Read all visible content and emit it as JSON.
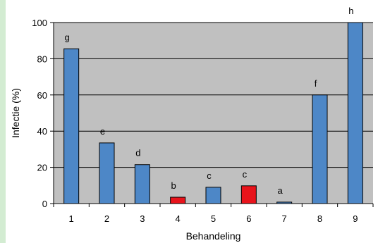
{
  "chart_data": {
    "type": "bar",
    "categories": [
      "1",
      "2",
      "3",
      "4",
      "5",
      "6",
      "7",
      "8",
      "9"
    ],
    "values": [
      85.5,
      33.5,
      21.5,
      3.5,
      9,
      9.8,
      0.8,
      60,
      100
    ],
    "letters": [
      "g",
      "e",
      "d",
      "b",
      "c",
      "c",
      "a",
      "f",
      "h"
    ],
    "bar_colors": [
      "#4d87c7",
      "#4d87c7",
      "#4d87c7",
      "#e8131b",
      "#4d87c7",
      "#e8131b",
      "#4d87c7",
      "#4d87c7",
      "#4d87c7"
    ],
    "title": "",
    "xlabel": "Behandeling",
    "ylabel": "Infectie (%)",
    "ylim": [
      0,
      100
    ],
    "yticks": [
      "0",
      "20",
      "40",
      "60",
      "80",
      "100"
    ],
    "grid": true,
    "plot_background": "#c0c0c0"
  }
}
